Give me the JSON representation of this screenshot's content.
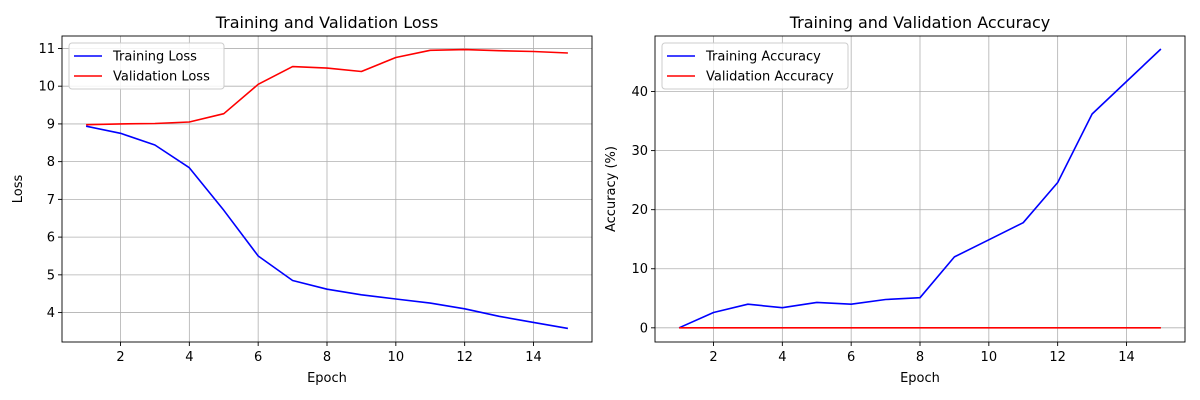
{
  "chart_data": [
    {
      "type": "line",
      "title": "Training and Validation Loss",
      "xlabel": "Epoch",
      "ylabel": "Loss",
      "xlim": [
        0.3,
        15.7
      ],
      "ylim": [
        3.22,
        11.33
      ],
      "xticks": [
        2,
        4,
        6,
        8,
        10,
        12,
        14
      ],
      "yticks": [
        4,
        5,
        6,
        7,
        8,
        9,
        10,
        11
      ],
      "grid": true,
      "legend_position": "top-left",
      "x": [
        1,
        2,
        3,
        4,
        5,
        6,
        7,
        8,
        9,
        10,
        11,
        12,
        13,
        14,
        15
      ],
      "series": [
        {
          "name": "Training Loss",
          "color": "#0000ff",
          "values": [
            8.94,
            8.75,
            8.44,
            7.84,
            6.71,
            5.5,
            4.85,
            4.62,
            4.47,
            4.36,
            4.25,
            4.1,
            3.9,
            3.74,
            3.58
          ]
        },
        {
          "name": "Validation Loss",
          "color": "#ff0000",
          "values": [
            8.98,
            9.0,
            9.01,
            9.05,
            9.27,
            10.05,
            10.52,
            10.48,
            10.39,
            10.76,
            10.95,
            10.97,
            10.94,
            10.92,
            10.88
          ]
        }
      ]
    },
    {
      "type": "line",
      "title": "Training and Validation Accuracy",
      "xlabel": "Epoch",
      "ylabel": "Accuracy (%)",
      "xlim": [
        0.3,
        15.7
      ],
      "ylim": [
        -2.4,
        49.4
      ],
      "xticks": [
        2,
        4,
        6,
        8,
        10,
        12,
        14
      ],
      "yticks": [
        0,
        10,
        20,
        30,
        40
      ],
      "grid": true,
      "legend_position": "top-left",
      "x": [
        1,
        2,
        3,
        4,
        5,
        6,
        7,
        8,
        9,
        10,
        11,
        12,
        13,
        14,
        15
      ],
      "series": [
        {
          "name": "Training Accuracy",
          "color": "#0000ff",
          "values": [
            0.0,
            2.6,
            4.0,
            3.4,
            4.3,
            4.0,
            4.8,
            5.1,
            12.0,
            14.9,
            17.8,
            24.6,
            36.2,
            41.7,
            47.2
          ]
        },
        {
          "name": "Validation Accuracy",
          "color": "#ff0000",
          "values": [
            0,
            0,
            0,
            0,
            0,
            0,
            0,
            0,
            0,
            0,
            0,
            0,
            0,
            0,
            0
          ]
        }
      ]
    }
  ]
}
